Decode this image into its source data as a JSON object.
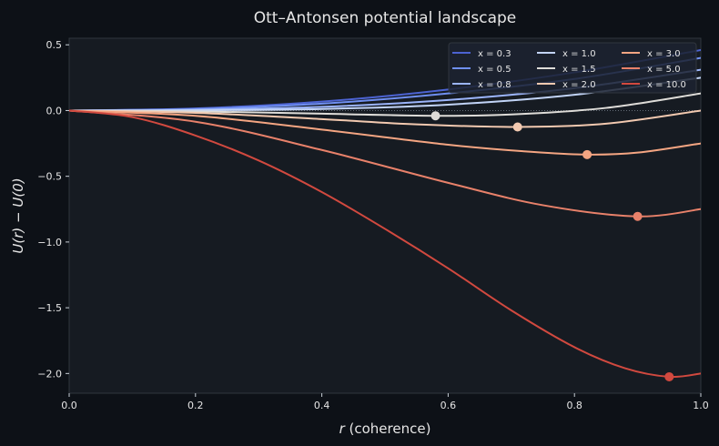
{
  "chart_data": {
    "type": "line",
    "title": "Ott–Antonsen potential landscape",
    "xlabel_var": "r",
    "xlabel_rest": " (coherence)",
    "ylabel": "U(r) − U(0)",
    "xlim": [
      0,
      1
    ],
    "ylim": [
      -2.15,
      0.55
    ],
    "xticks": [
      0.0,
      0.2,
      0.4,
      0.6,
      0.8,
      1.0
    ],
    "xtick_labels": [
      "0.0",
      "0.2",
      "0.4",
      "0.6",
      "0.8",
      "1.0"
    ],
    "yticks": [
      0.5,
      0.0,
      -0.5,
      -1.0,
      -1.5,
      -2.0
    ],
    "ytick_labels": [
      "0.5",
      "0.0",
      "−0.5",
      "−1.0",
      "−1.5",
      "−2.0"
    ],
    "grid": false,
    "zero_line": "dotted",
    "legend_position": "top-right",
    "series": [
      {
        "name": "x = 0.3",
        "x": 0.3,
        "color": "#4c63d2",
        "points": [
          [
            0,
            0
          ],
          [
            0.2,
            0.016
          ],
          [
            0.4,
            0.068
          ],
          [
            0.6,
            0.16
          ],
          [
            0.8,
            0.29
          ],
          [
            1.0,
            0.46
          ]
        ]
      },
      {
        "name": "x = 0.5",
        "x": 0.5,
        "color": "#6f8ff0",
        "points": [
          [
            0,
            0
          ],
          [
            0.2,
            0.012
          ],
          [
            0.4,
            0.052
          ],
          [
            0.6,
            0.13
          ],
          [
            0.8,
            0.24
          ],
          [
            1.0,
            0.4
          ]
        ]
      },
      {
        "name": "x = 0.8",
        "x": 0.8,
        "color": "#9bb4fa",
        "points": [
          [
            0,
            0
          ],
          [
            0.2,
            0.006
          ],
          [
            0.4,
            0.028
          ],
          [
            0.6,
            0.08
          ],
          [
            0.8,
            0.17
          ],
          [
            1.0,
            0.31
          ]
        ]
      },
      {
        "name": "x = 1.0",
        "x": 1.0,
        "color": "#c2d4f7",
        "points": [
          [
            0,
            0
          ],
          [
            0.2,
            0.002
          ],
          [
            0.4,
            0.012
          ],
          [
            0.6,
            0.045
          ],
          [
            0.8,
            0.12
          ],
          [
            1.0,
            0.25
          ]
        ]
      },
      {
        "name": "x = 1.5",
        "x": 1.5,
        "color": "#dedcd8",
        "points": [
          [
            0,
            0
          ],
          [
            0.2,
            -0.007
          ],
          [
            0.4,
            -0.024
          ],
          [
            0.58,
            -0.04
          ],
          [
            0.7,
            -0.03
          ],
          [
            0.85,
            0.02
          ],
          [
            1.0,
            0.13
          ]
        ],
        "minimum": [
          0.58,
          -0.04
        ]
      },
      {
        "name": "x = 2.0",
        "x": 2.0,
        "color": "#f2c9b0",
        "points": [
          [
            0,
            0
          ],
          [
            0.2,
            -0.018
          ],
          [
            0.4,
            -0.065
          ],
          [
            0.55,
            -0.105
          ],
          [
            0.71,
            -0.125
          ],
          [
            0.85,
            -0.1
          ],
          [
            1.0,
            0.0
          ]
        ],
        "minimum": [
          0.71,
          -0.125
        ]
      },
      {
        "name": "x = 3.0",
        "x": 3.0,
        "color": "#f4a582",
        "points": [
          [
            0,
            0
          ],
          [
            0.2,
            -0.04
          ],
          [
            0.4,
            -0.145
          ],
          [
            0.6,
            -0.26
          ],
          [
            0.72,
            -0.31
          ],
          [
            0.82,
            -0.335
          ],
          [
            0.9,
            -0.32
          ],
          [
            1.0,
            -0.25
          ]
        ],
        "minimum": [
          0.82,
          -0.335
        ]
      },
      {
        "name": "x = 5.0",
        "x": 5.0,
        "color": "#e8816a",
        "points": [
          [
            0,
            0
          ],
          [
            0.2,
            -0.085
          ],
          [
            0.4,
            -0.3
          ],
          [
            0.6,
            -0.55
          ],
          [
            0.75,
            -0.72
          ],
          [
            0.9,
            -0.805
          ],
          [
            1.0,
            -0.75
          ]
        ],
        "minimum": [
          0.9,
          -0.805
        ]
      },
      {
        "name": "x = 10.0",
        "x": 10.0,
        "color": "#d1493f",
        "points": [
          [
            0,
            0
          ],
          [
            0.1,
            -0.05
          ],
          [
            0.2,
            -0.19
          ],
          [
            0.3,
            -0.38
          ],
          [
            0.4,
            -0.62
          ],
          [
            0.5,
            -0.9
          ],
          [
            0.6,
            -1.2
          ],
          [
            0.7,
            -1.52
          ],
          [
            0.8,
            -1.8
          ],
          [
            0.88,
            -1.96
          ],
          [
            0.95,
            -2.025
          ],
          [
            1.0,
            -2.0
          ]
        ],
        "minimum": [
          0.95,
          -2.025
        ]
      }
    ]
  }
}
